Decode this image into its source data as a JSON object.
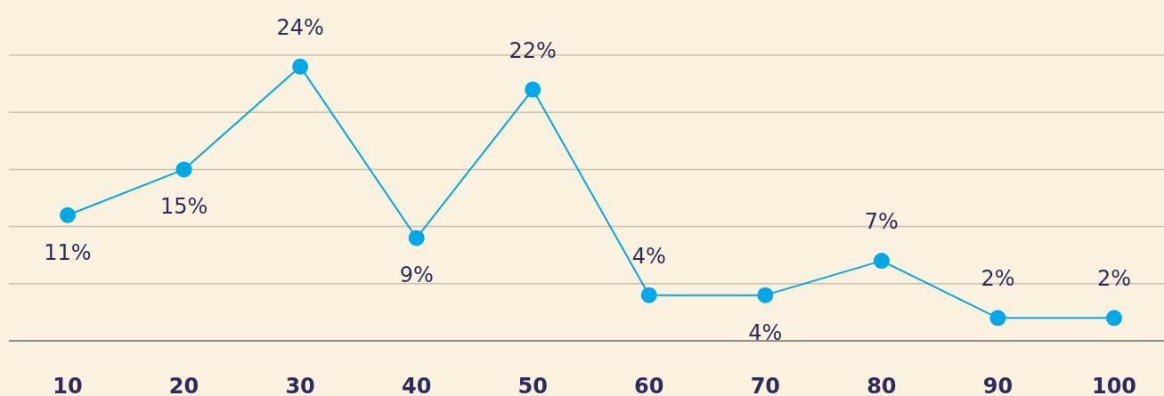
{
  "chart_data": {
    "type": "line",
    "categories": [
      "10",
      "20",
      "30",
      "40",
      "50",
      "60",
      "70",
      "80",
      "90",
      "100"
    ],
    "series": [
      {
        "color": "#00a8e8",
        "values": [
          11,
          15,
          24,
          9,
          22,
          4,
          4,
          7,
          2,
          2
        ],
        "value_labels": [
          "11%",
          "15%",
          "24%",
          "9%",
          "22%",
          "4%",
          "4%",
          "7%",
          "2%",
          "2%"
        ]
      }
    ],
    "ylim": [
      0,
      25
    ],
    "yticks": [
      {
        "value": 0,
        "label": null
      },
      {
        "value": 5,
        "label": null
      },
      {
        "value": 10,
        "label": null
      },
      {
        "value": 15,
        "label": null
      },
      {
        "value": 20,
        "label": null
      },
      {
        "value": 25,
        "label": null
      }
    ],
    "grid": "y",
    "tick_labels": "x",
    "marker": "circle"
  }
}
